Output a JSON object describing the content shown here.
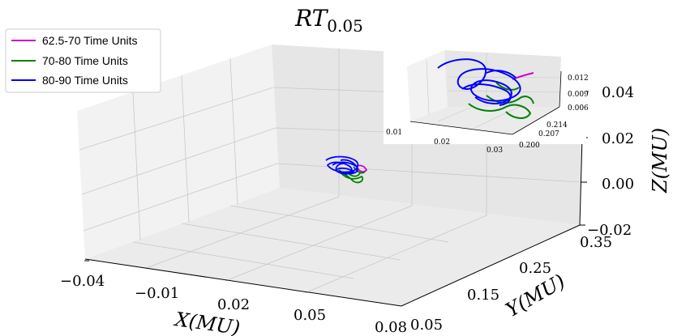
{
  "chart_data": {
    "type": "line",
    "projection": "3d",
    "title": "RT",
    "title_subscript": "0.05",
    "xlabel": "X(MU)",
    "ylabel": "Y(MU)",
    "zlabel": "Z(MU)",
    "x_ticks": [
      "−0.04",
      "−0.01",
      "0.02",
      "0.05",
      "0.08"
    ],
    "y_ticks": [
      "0.05",
      "0.15",
      "0.25",
      "0.35"
    ],
    "z_ticks": [
      "−0.02",
      "0.00",
      "0.02",
      "0.04"
    ],
    "xlim": [
      -0.04,
      0.08
    ],
    "ylim": [
      0.05,
      0.35
    ],
    "zlim": [
      -0.02,
      0.04
    ],
    "legend_position": "upper-left",
    "series": [
      {
        "name": "62.5-70 Time Units",
        "color": "#cc00cc",
        "time_range": [
          62.5,
          70
        ]
      },
      {
        "name": "70-80 Time Units",
        "color": "#008000",
        "time_range": [
          70,
          80
        ]
      },
      {
        "name": "80-90 Time Units",
        "color": "#0000ff",
        "time_range": [
          80,
          90
        ]
      }
    ],
    "inset": {
      "x_ticks": [
        "0.01",
        "0.02",
        "0.03"
      ],
      "y_ticks": [
        "0.200",
        "0.207",
        "0.214"
      ],
      "z_ticks": [
        "0.006",
        "0.009",
        "0.012"
      ]
    }
  }
}
